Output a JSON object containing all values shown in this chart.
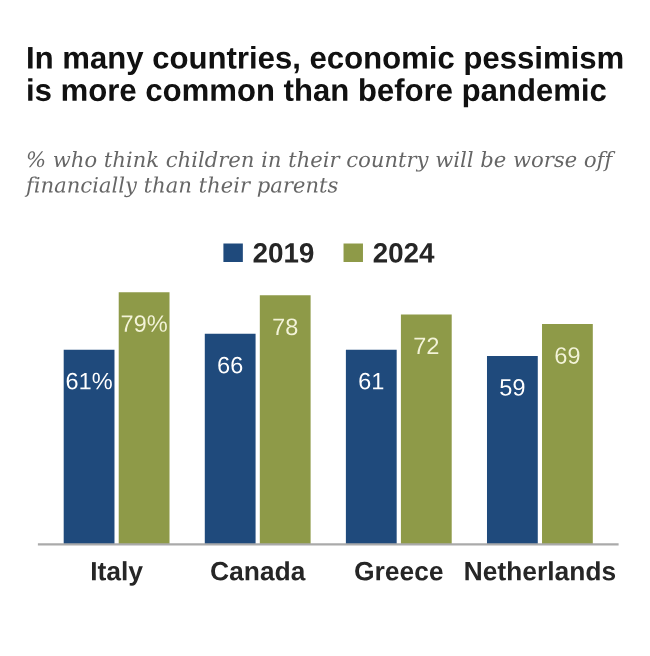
{
  "chart_data": {
    "type": "bar",
    "title": "In many countries, economic pessimism\nis more common than before pandemic",
    "subtitle": "% who think children in their country will be worse off\nfinancially than their parents",
    "categories": [
      "Italy",
      "Canada",
      "Greece",
      "Netherlands"
    ],
    "series": [
      {
        "name": "2019",
        "color": "#1f4a7c",
        "values": [
          61,
          66,
          61,
          59
        ],
        "value_labels": [
          "61%",
          "66",
          "61",
          "59"
        ]
      },
      {
        "name": "2024",
        "color": "#8e9a48",
        "values": [
          79,
          78,
          72,
          69
        ],
        "value_labels": [
          "79%",
          "78",
          "72",
          "69"
        ]
      }
    ],
    "legend": "top",
    "grid": false
  }
}
